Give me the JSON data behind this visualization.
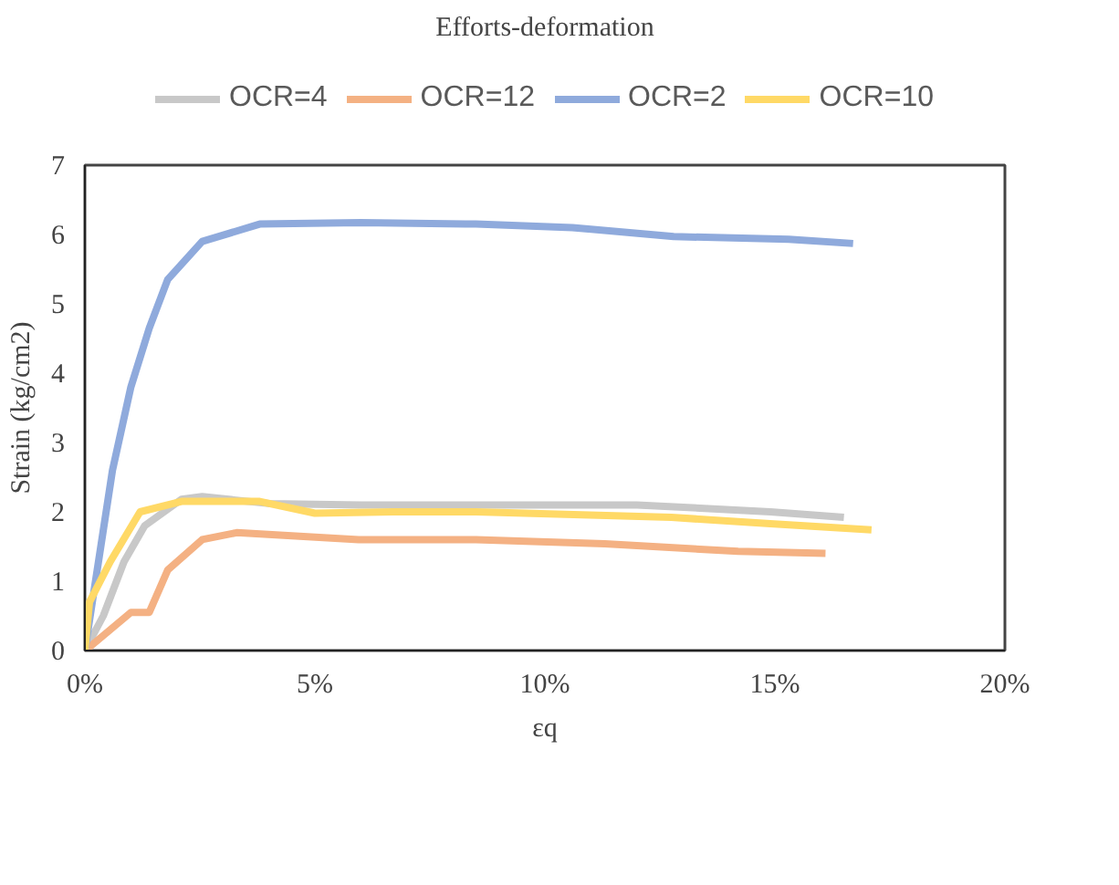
{
  "chart_data": {
    "type": "line",
    "title": "Efforts-deformation",
    "xlabel": "εq",
    "ylabel": "Strain (kg/cm2)",
    "xlim": [
      0,
      0.2
    ],
    "xticks": [
      {
        "value": 0,
        "label": "0%"
      },
      {
        "value": 0.05,
        "label": "5%"
      },
      {
        "value": 0.1,
        "label": "10%"
      },
      {
        "value": 0.15,
        "label": "15%"
      },
      {
        "value": 0.2,
        "label": "20%"
      }
    ],
    "ylim": [
      0,
      7
    ],
    "yticks": [
      0,
      1,
      2,
      3,
      4,
      5,
      6,
      7
    ],
    "grid": false,
    "legend": "top",
    "marker": "none",
    "line_style": "solid",
    "series": [
      {
        "name": "OCR=4",
        "color": "#c8c8c8",
        "x": [
          0,
          0.004,
          0.0085,
          0.013,
          0.021,
          0.0255,
          0.04,
          0.06,
          0.085,
          0.12,
          0.149,
          0.165
        ],
        "values": [
          0,
          0.5,
          1.28,
          1.8,
          2.18,
          2.22,
          2.12,
          2.1,
          2.1,
          2.1,
          2.0,
          1.92
        ]
      },
      {
        "name": "OCR=12",
        "color": "#f4b183",
        "x": [
          0,
          0.001,
          0.01,
          0.014,
          0.018,
          0.0255,
          0.033,
          0.0595,
          0.085,
          0.113,
          0.142,
          0.161
        ],
        "values": [
          0,
          0.05,
          0.55,
          0.55,
          1.16,
          1.6,
          1.7,
          1.6,
          1.6,
          1.54,
          1.43,
          1.4
        ]
      },
      {
        "name": "OCR=2",
        "color": "#8faadc",
        "x": [
          0,
          0.006,
          0.01,
          0.014,
          0.018,
          0.0255,
          0.038,
          0.06,
          0.085,
          0.106,
          0.128,
          0.153,
          0.167
        ],
        "values": [
          0,
          2.6,
          3.8,
          4.65,
          5.35,
          5.9,
          6.15,
          6.17,
          6.15,
          6.1,
          5.97,
          5.93,
          5.87
        ]
      },
      {
        "name": "OCR=10",
        "color": "#ffd966",
        "x": [
          0,
          0.001,
          0.0055,
          0.012,
          0.021,
          0.038,
          0.05,
          0.067,
          0.085,
          0.1275,
          0.149,
          0.171
        ],
        "values": [
          0,
          0.7,
          1.28,
          2.0,
          2.15,
          2.15,
          1.98,
          2.0,
          2.0,
          1.92,
          1.83,
          1.74
        ]
      }
    ]
  }
}
